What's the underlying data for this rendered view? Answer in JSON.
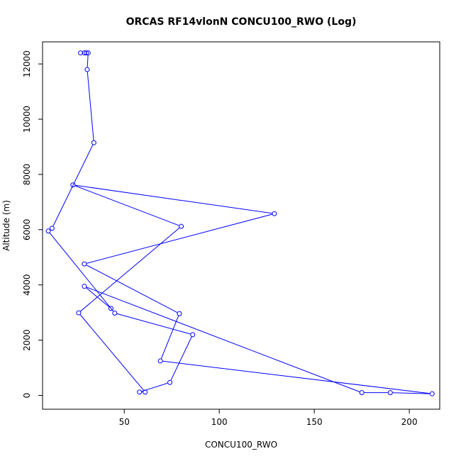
{
  "chart_data": {
    "type": "line",
    "title": "ORCAS RF14vlonN CONCU100_RWO (Log)",
    "xlabel": "CONCU100_RWO",
    "ylabel": "Altitude (m)",
    "xlim": [
      7,
      216
    ],
    "ylim": [
      -500,
      12800
    ],
    "xticks": [
      50,
      100,
      150,
      200
    ],
    "yticks": [
      0,
      2000,
      4000,
      6000,
      8000,
      10000,
      12000
    ],
    "grid": false,
    "marker": "open-circle",
    "color": "#0000ff",
    "series": [
      {
        "points": [
          {
            "x": 27,
            "y": 12400
          },
          {
            "x": 29,
            "y": 12400
          },
          {
            "x": 30,
            "y": 12400
          },
          {
            "x": 31,
            "y": 12400
          },
          {
            "x": 30.5,
            "y": 11800
          },
          {
            "x": 34,
            "y": 9150
          },
          {
            "x": 12,
            "y": 6050
          },
          {
            "x": 10,
            "y": 5950
          },
          {
            "x": 45,
            "y": 2980
          },
          {
            "x": 86,
            "y": 2200
          },
          {
            "x": 74,
            "y": 470
          },
          {
            "x": 58,
            "y": 120
          },
          {
            "x": 61,
            "y": 120
          },
          {
            "x": 26,
            "y": 2990
          },
          {
            "x": 80,
            "y": 6120
          },
          {
            "x": 23,
            "y": 7620
          },
          {
            "x": 129,
            "y": 6580
          },
          {
            "x": 29,
            "y": 4760
          },
          {
            "x": 79,
            "y": 2960
          },
          {
            "x": 69,
            "y": 1250
          },
          {
            "x": 212,
            "y": 60
          },
          {
            "x": 190,
            "y": 100
          },
          {
            "x": 175,
            "y": 100
          },
          {
            "x": 29,
            "y": 3950
          },
          {
            "x": 43,
            "y": 3150
          }
        ]
      }
    ]
  }
}
